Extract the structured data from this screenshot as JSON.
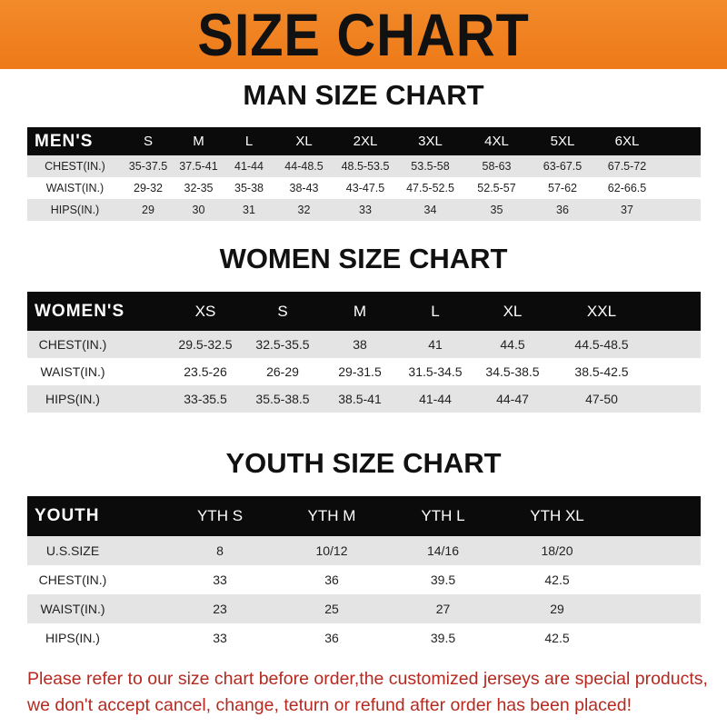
{
  "banner": {
    "title": "SIZE CHART",
    "color": "#f0821f"
  },
  "men": {
    "title": "MAN SIZE CHART",
    "header": [
      "MEN'S",
      "S",
      "M",
      "L",
      "XL",
      "2XL",
      "3XL",
      "4XL",
      "5XL",
      "6XL"
    ],
    "rows": [
      [
        "CHEST(IN.)",
        "35-37.5",
        "37.5-41",
        "41-44",
        "44-48.5",
        "48.5-53.5",
        "53.5-58",
        "58-63",
        "63-67.5",
        "67.5-72"
      ],
      [
        "WAIST(IN.)",
        "29-32",
        "32-35",
        "35-38",
        "38-43",
        "43-47.5",
        "47.5-52.5",
        "52.5-57",
        "57-62",
        "62-66.5"
      ],
      [
        "HIPS(IN.)",
        "29",
        "30",
        "31",
        "32",
        "33",
        "34",
        "35",
        "36",
        "37"
      ]
    ]
  },
  "women": {
    "title": "WOMEN SIZE CHART",
    "header": [
      "WOMEN'S",
      "XS",
      "S",
      "M",
      "L",
      "XL",
      "XXL"
    ],
    "rows": [
      [
        "CHEST(IN.)",
        "29.5-32.5",
        "32.5-35.5",
        "38",
        "41",
        "44.5",
        "44.5-48.5"
      ],
      [
        "WAIST(IN.)",
        "23.5-26",
        "26-29",
        "29-31.5",
        "31.5-34.5",
        "34.5-38.5",
        "38.5-42.5"
      ],
      [
        "HIPS(IN.)",
        "33-35.5",
        "35.5-38.5",
        "38.5-41",
        "41-44",
        "44-47",
        "47-50"
      ]
    ]
  },
  "youth": {
    "title": "YOUTH SIZE CHART",
    "header": [
      "YOUTH",
      "YTH S",
      "YTH M",
      "YTH L",
      "YTH XL"
    ],
    "rows": [
      [
        "U.S.SIZE",
        "8",
        "10/12",
        "14/16",
        "18/20"
      ],
      [
        "CHEST(IN.)",
        "33",
        "36",
        "39.5",
        "42.5"
      ],
      [
        "WAIST(IN.)",
        "23",
        "25",
        "27",
        "29"
      ],
      [
        "HIPS(IN.)",
        "33",
        "36",
        "39.5",
        "42.5"
      ]
    ]
  },
  "notice": {
    "line1": "Please refer to our size chart before order,the customized jerseys are special products,",
    "line2": "we don't accept cancel, change, teturn or refund after order has been placed!",
    "color": "#b52a20"
  }
}
